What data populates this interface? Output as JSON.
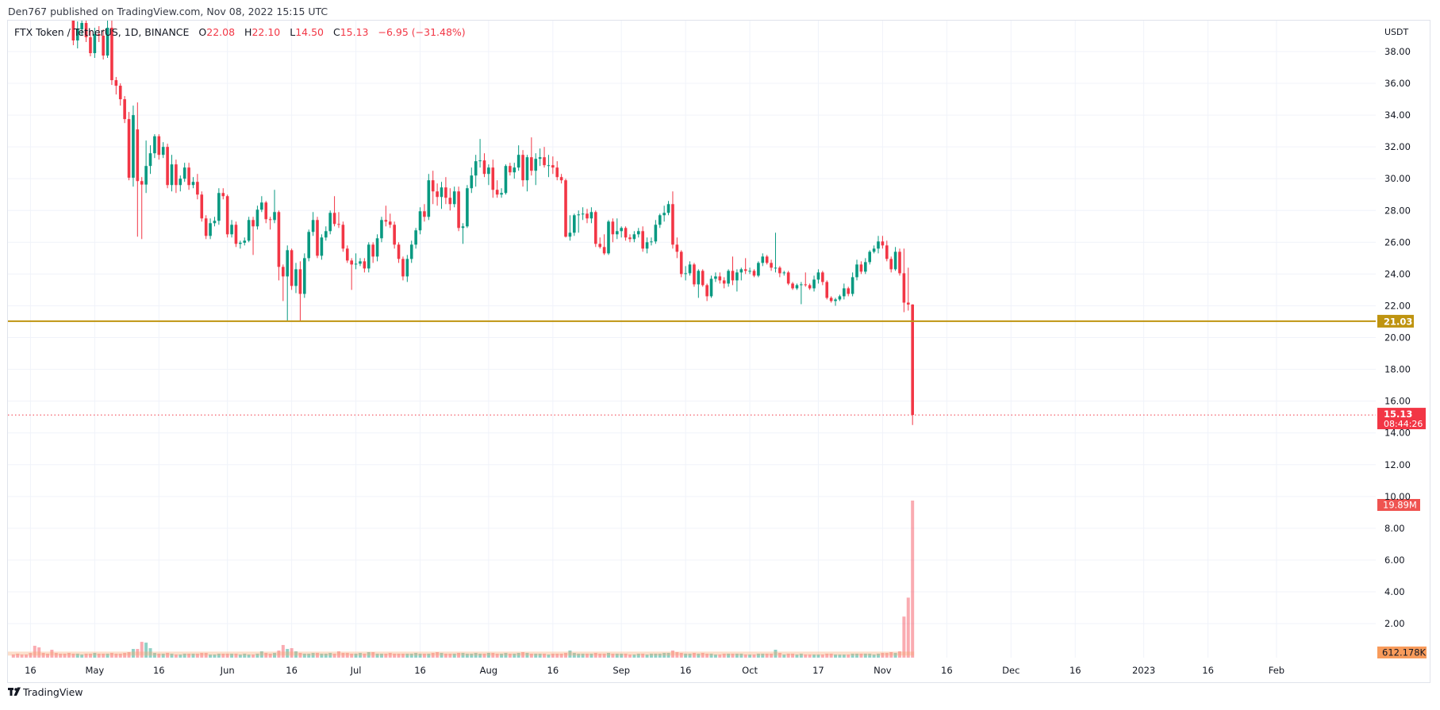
{
  "header": {
    "published": "Den767 published on TradingView.com, Nov 08, 2022 15:15 UTC"
  },
  "legend": {
    "symbol": "FTX Token / TetherUS, 1D, BINANCE",
    "o_label": "O",
    "o": "22.08",
    "h_label": "H",
    "h": "22.10",
    "l_label": "L",
    "l": "14.50",
    "c_label": "C",
    "c": "15.13",
    "change": "−6.95 (−31.48%)"
  },
  "footer": {
    "brand": "TradingView"
  },
  "colors": {
    "up": "#089981",
    "down": "#f23645",
    "level": "#bf9410",
    "volume_ma": "#f7a26b",
    "grid": "#f0f3fa"
  },
  "chart_data": {
    "type": "candlestick",
    "interval": "1D",
    "currency": "USDT",
    "y_ticks": [
      "38.00",
      "36.00",
      "34.00",
      "32.00",
      "30.00",
      "28.00",
      "26.00",
      "24.00",
      "22.00",
      "20.00",
      "18.00",
      "16.00",
      "14.00",
      "12.00",
      "10.00",
      "8.00",
      "6.00",
      "4.00",
      "2.00"
    ],
    "ylim": [
      2,
      38
    ],
    "x_ticks": [
      "16",
      "May",
      "16",
      "Jun",
      "16",
      "Jul",
      "16",
      "Aug",
      "16",
      "Sep",
      "16",
      "Oct",
      "17",
      "Nov",
      "16",
      "Dec",
      "16",
      "2023",
      "16",
      "Feb"
    ],
    "grid": true,
    "horizontal_level": {
      "value": 21.03,
      "label": "21.03"
    },
    "last_price": {
      "value": 15.13,
      "label": "15.13",
      "countdown": "08:44:26"
    },
    "volume_last_label": "19.89M",
    "volume_ma_label": "612.178K",
    "volume_ma": 0.612,
    "volume_unit": "M",
    "candles_ohlc": [
      [
        40.3,
        41.0,
        38.4,
        38.7
      ],
      [
        38.7,
        39.9,
        38.2,
        39.4
      ],
      [
        39.4,
        40.5,
        39.0,
        39.8
      ],
      [
        39.8,
        40.4,
        38.6,
        38.9
      ],
      [
        38.9,
        39.3,
        37.7,
        37.9
      ],
      [
        37.9,
        39.5,
        37.6,
        39.1
      ],
      [
        39.1,
        39.6,
        38.6,
        39.0
      ],
      [
        39.0,
        39.4,
        37.5,
        37.75
      ],
      [
        37.75,
        40.5,
        37.6,
        39.5
      ],
      [
        39.5,
        40.2,
        35.9,
        36.2
      ],
      [
        36.2,
        36.4,
        35.3,
        35.85
      ],
      [
        35.85,
        36.0,
        34.6,
        35.0
      ],
      [
        35.0,
        35.2,
        33.5,
        33.75
      ],
      [
        33.75,
        34.2,
        29.9,
        30.06
      ],
      [
        30.06,
        34.6,
        29.5,
        34.0
      ],
      [
        33.1,
        34.8,
        26.35,
        29.85
      ],
      [
        29.85,
        30.1,
        26.2,
        29.63
      ],
      [
        29.63,
        32.4,
        29.1,
        30.8
      ],
      [
        30.8,
        32.1,
        30.3,
        31.6
      ],
      [
        31.6,
        32.8,
        31.3,
        32.67
      ],
      [
        32.67,
        32.8,
        31.2,
        31.5
      ],
      [
        31.5,
        32.3,
        31.3,
        32.0
      ],
      [
        32.0,
        32.2,
        29.4,
        29.6
      ],
      [
        29.6,
        31.5,
        29.2,
        30.9
      ],
      [
        30.9,
        31.2,
        29.1,
        29.6
      ],
      [
        29.6,
        30.2,
        29.2,
        30.0
      ],
      [
        30.0,
        31.0,
        29.8,
        30.7
      ],
      [
        30.7,
        31.0,
        29.3,
        29.6
      ],
      [
        29.6,
        30.1,
        29.4,
        29.8
      ],
      [
        29.8,
        30.3,
        28.7,
        29.0
      ],
      [
        29.0,
        29.2,
        27.3,
        27.5
      ],
      [
        27.5,
        27.7,
        26.2,
        26.4
      ],
      [
        26.4,
        27.5,
        26.2,
        27.2
      ],
      [
        27.2,
        27.6,
        27.0,
        27.35
      ],
      [
        27.35,
        29.4,
        27.1,
        29.1
      ],
      [
        29.1,
        29.4,
        28.7,
        28.9
      ],
      [
        28.9,
        29.0,
        26.3,
        26.5
      ],
      [
        26.5,
        27.4,
        26.3,
        27.1
      ],
      [
        27.1,
        27.3,
        25.7,
        25.9
      ],
      [
        25.9,
        26.1,
        25.6,
        25.97
      ],
      [
        25.97,
        26.3,
        25.8,
        26.1
      ],
      [
        26.1,
        27.6,
        26.0,
        27.4
      ],
      [
        27.4,
        27.6,
        25.2,
        27.0
      ],
      [
        27.0,
        28.3,
        26.8,
        28.05
      ],
      [
        28.05,
        28.9,
        27.9,
        28.5
      ],
      [
        28.5,
        28.6,
        27.2,
        27.45
      ],
      [
        27.45,
        27.6,
        26.8,
        27.4
      ],
      [
        27.4,
        29.3,
        27.2,
        27.9
      ],
      [
        27.9,
        28.0,
        23.6,
        24.45
      ],
      [
        24.45,
        24.6,
        22.3,
        23.85
      ],
      [
        23.85,
        25.8,
        21.05,
        25.5
      ],
      [
        25.5,
        25.6,
        23.0,
        23.25
      ],
      [
        23.25,
        24.7,
        22.8,
        24.3
      ],
      [
        24.3,
        24.8,
        21.0,
        22.75
      ],
      [
        22.75,
        25.3,
        22.5,
        25.0
      ],
      [
        25.0,
        26.8,
        24.8,
        26.65
      ],
      [
        26.65,
        27.9,
        26.4,
        27.4
      ],
      [
        27.4,
        27.6,
        25.0,
        25.15
      ],
      [
        25.15,
        26.5,
        24.9,
        26.3
      ],
      [
        26.3,
        27.0,
        26.1,
        26.7
      ],
      [
        26.7,
        28.0,
        26.5,
        27.85
      ],
      [
        27.85,
        28.9,
        27.0,
        27.15
      ],
      [
        27.15,
        27.9,
        26.9,
        27.1
      ],
      [
        27.1,
        27.3,
        25.4,
        25.6
      ],
      [
        25.6,
        25.8,
        24.7,
        24.85
      ],
      [
        24.85,
        25.0,
        23.0,
        24.6
      ],
      [
        24.6,
        25.3,
        24.3,
        24.65
      ],
      [
        24.65,
        25.0,
        24.5,
        24.8
      ],
      [
        24.8,
        25.0,
        24.1,
        24.35
      ],
      [
        24.35,
        26.0,
        24.1,
        25.85
      ],
      [
        25.85,
        26.0,
        24.7,
        25.1
      ],
      [
        25.1,
        26.5,
        24.8,
        26.25
      ],
      [
        26.25,
        27.6,
        26.0,
        27.4
      ],
      [
        27.4,
        28.3,
        27.0,
        27.3
      ],
      [
        27.3,
        27.8,
        26.9,
        27.1
      ],
      [
        27.1,
        27.3,
        25.6,
        25.85
      ],
      [
        25.85,
        26.0,
        24.7,
        24.95
      ],
      [
        24.95,
        25.1,
        23.6,
        23.85
      ],
      [
        23.85,
        25.2,
        23.5,
        24.95
      ],
      [
        24.95,
        26.1,
        24.7,
        25.85
      ],
      [
        25.85,
        26.9,
        25.6,
        26.75
      ],
      [
        26.75,
        28.2,
        26.5,
        27.95
      ],
      [
        27.95,
        28.4,
        27.3,
        27.6
      ],
      [
        27.6,
        30.3,
        27.4,
        29.9
      ],
      [
        29.9,
        30.5,
        28.4,
        29.2
      ],
      [
        29.2,
        29.7,
        28.3,
        28.85
      ],
      [
        28.85,
        29.8,
        28.1,
        29.45
      ],
      [
        29.45,
        30.1,
        28.4,
        28.8
      ],
      [
        28.8,
        29.4,
        28.0,
        28.4
      ],
      [
        28.4,
        29.5,
        28.2,
        29.2
      ],
      [
        29.2,
        29.5,
        26.7,
        26.9
      ],
      [
        26.9,
        27.2,
        25.9,
        27.0
      ],
      [
        27.0,
        29.6,
        26.9,
        29.4
      ],
      [
        29.4,
        30.7,
        29.1,
        30.2
      ],
      [
        30.2,
        31.5,
        29.5,
        31.1
      ],
      [
        31.1,
        32.5,
        30.7,
        31.15
      ],
      [
        31.15,
        31.6,
        30.1,
        30.3
      ],
      [
        30.3,
        30.9,
        29.6,
        30.7
      ],
      [
        30.7,
        31.2,
        28.8,
        29.3
      ],
      [
        29.3,
        29.9,
        28.8,
        29.0
      ],
      [
        29.0,
        29.4,
        28.8,
        29.1
      ],
      [
        29.1,
        30.9,
        29.0,
        30.8
      ],
      [
        30.8,
        31.0,
        30.2,
        30.4
      ],
      [
        30.4,
        31.0,
        30.0,
        30.7
      ],
      [
        30.7,
        32.1,
        30.5,
        31.5
      ],
      [
        31.5,
        31.8,
        29.5,
        29.9
      ],
      [
        29.9,
        31.5,
        29.2,
        31.35
      ],
      [
        31.35,
        32.6,
        30.2,
        30.5
      ],
      [
        30.5,
        31.6,
        29.6,
        31.25
      ],
      [
        31.25,
        31.9,
        30.8,
        31.35
      ],
      [
        31.35,
        32.0,
        30.7,
        30.85
      ],
      [
        30.85,
        31.5,
        30.1,
        30.85
      ],
      [
        30.85,
        31.4,
        30.3,
        30.7
      ],
      [
        30.7,
        31.1,
        29.9,
        30.1
      ],
      [
        30.1,
        30.3,
        29.7,
        29.9
      ],
      [
        29.9,
        30.0,
        26.3,
        26.35
      ],
      [
        26.35,
        27.7,
        26.1,
        26.6
      ],
      [
        26.6,
        27.8,
        26.4,
        27.7
      ],
      [
        27.7,
        28.0,
        26.6,
        27.75
      ],
      [
        27.75,
        28.2,
        27.4,
        27.8
      ],
      [
        27.8,
        28.1,
        27.2,
        27.5
      ],
      [
        27.5,
        28.2,
        27.2,
        27.9
      ],
      [
        27.9,
        28.0,
        25.7,
        25.9
      ],
      [
        25.9,
        26.3,
        25.6,
        25.7
      ],
      [
        25.7,
        26.5,
        25.2,
        25.3
      ],
      [
        25.3,
        27.4,
        25.2,
        27.3
      ],
      [
        27.3,
        27.5,
        26.0,
        26.5
      ],
      [
        26.5,
        27.5,
        26.2,
        26.7
      ],
      [
        26.7,
        27.0,
        26.3,
        26.9
      ],
      [
        26.9,
        27.0,
        26.1,
        26.3
      ],
      [
        26.3,
        26.5,
        26.0,
        26.2
      ],
      [
        26.2,
        26.7,
        26.0,
        26.5
      ],
      [
        26.5,
        26.9,
        26.3,
        26.7
      ],
      [
        26.7,
        27.0,
        25.4,
        25.6
      ],
      [
        25.6,
        26.3,
        25.3,
        26.0
      ],
      [
        26.0,
        26.3,
        25.8,
        26.05
      ],
      [
        26.05,
        27.4,
        25.9,
        27.1
      ],
      [
        27.1,
        27.8,
        26.9,
        27.7
      ],
      [
        27.7,
        28.3,
        27.3,
        27.85
      ],
      [
        27.85,
        28.6,
        27.7,
        28.4
      ],
      [
        28.4,
        29.2,
        25.6,
        25.85
      ],
      [
        25.85,
        26.3,
        25.0,
        25.4
      ],
      [
        25.4,
        25.5,
        23.8,
        24.0
      ],
      [
        24.0,
        24.5,
        23.6,
        24.05
      ],
      [
        24.05,
        24.8,
        23.9,
        24.6
      ],
      [
        24.6,
        24.7,
        23.2,
        23.35
      ],
      [
        23.35,
        24.3,
        22.5,
        24.2
      ],
      [
        24.2,
        24.3,
        23.2,
        23.3
      ],
      [
        23.3,
        23.4,
        22.3,
        22.6
      ],
      [
        22.6,
        23.9,
        22.5,
        23.7
      ],
      [
        23.7,
        24.1,
        23.5,
        23.85
      ],
      [
        23.85,
        24.1,
        23.4,
        23.6
      ],
      [
        23.6,
        23.8,
        23.1,
        23.4
      ],
      [
        23.4,
        24.3,
        23.2,
        24.2
      ],
      [
        24.2,
        25.1,
        23.3,
        23.6
      ],
      [
        23.6,
        24.3,
        22.9,
        24.1
      ],
      [
        24.1,
        24.4,
        23.6,
        24.3
      ],
      [
        24.3,
        25.0,
        24.0,
        24.2
      ],
      [
        24.2,
        24.4,
        24.0,
        24.2
      ],
      [
        24.2,
        24.3,
        23.8,
        23.9
      ],
      [
        23.9,
        24.8,
        23.8,
        24.7
      ],
      [
        24.7,
        25.3,
        24.5,
        25.1
      ],
      [
        25.1,
        25.2,
        24.6,
        24.7
      ],
      [
        24.7,
        24.9,
        24.2,
        24.4
      ],
      [
        24.4,
        26.6,
        24.1,
        24.4
      ],
      [
        24.4,
        24.5,
        23.8,
        24.05
      ],
      [
        24.05,
        24.2,
        23.9,
        24.1
      ],
      [
        24.1,
        24.2,
        23.3,
        23.4
      ],
      [
        23.4,
        23.5,
        23.0,
        23.1
      ],
      [
        23.1,
        23.4,
        23.0,
        23.3
      ],
      [
        23.3,
        23.5,
        22.1,
        23.35
      ],
      [
        23.35,
        24.1,
        23.2,
        23.3
      ],
      [
        23.3,
        23.4,
        23.0,
        23.1
      ],
      [
        23.1,
        23.9,
        22.9,
        23.65
      ],
      [
        23.65,
        24.3,
        23.4,
        24.1
      ],
      [
        24.1,
        24.2,
        23.3,
        23.5
      ],
      [
        23.5,
        23.6,
        22.4,
        22.5
      ],
      [
        22.5,
        22.6,
        22.2,
        22.3
      ],
      [
        22.3,
        22.5,
        22.0,
        22.4
      ],
      [
        22.4,
        22.7,
        22.3,
        22.6
      ],
      [
        22.6,
        23.4,
        22.4,
        23.1
      ],
      [
        23.1,
        23.2,
        22.6,
        22.75
      ],
      [
        22.75,
        24.1,
        22.6,
        23.8
      ],
      [
        23.8,
        24.9,
        23.6,
        24.6
      ],
      [
        24.6,
        24.8,
        24.0,
        24.15
      ],
      [
        24.15,
        25.0,
        24.0,
        24.75
      ],
      [
        24.75,
        25.5,
        24.6,
        25.4
      ],
      [
        25.4,
        25.8,
        25.3,
        25.6
      ],
      [
        25.6,
        26.4,
        25.3,
        26.05
      ],
      [
        26.05,
        26.4,
        25.6,
        25.8
      ],
      [
        25.8,
        26.1,
        24.8,
        24.95
      ],
      [
        24.95,
        25.1,
        24.1,
        24.3
      ],
      [
        24.3,
        25.7,
        24.2,
        25.4
      ],
      [
        25.4,
        25.6,
        23.9,
        24.05
      ],
      [
        24.05,
        25.6,
        21.6,
        22.2
      ],
      [
        22.2,
        24.4,
        21.7,
        22.08
      ],
      [
        22.08,
        22.1,
        14.5,
        15.13
      ]
    ],
    "volume": [
      0.4,
      0.5,
      0.4,
      0.4,
      0.6,
      1.5,
      1.3,
      0.6,
      0.5,
      1.0,
      0.6,
      0.5,
      0.5,
      0.6,
      0.5,
      0.5,
      0.4,
      0.5,
      0.5,
      0.6,
      0.5,
      0.5,
      0.5,
      0.6,
      0.5,
      0.5,
      0.6,
      0.7,
      1.1,
      1.1,
      2.0,
      1.9,
      1.2,
      0.6,
      0.5,
      0.5,
      0.6,
      0.5,
      0.4,
      0.4,
      0.5,
      0.5,
      0.5,
      0.5,
      0.6,
      0.6,
      0.4,
      0.4,
      0.5,
      0.5,
      0.5,
      0.5,
      0.5,
      0.4,
      0.5,
      0.4,
      0.4,
      0.5,
      0.8,
      0.6,
      0.5,
      0.6,
      0.9,
      1.6,
      1.1,
      1.2,
      0.8,
      0.6,
      0.5,
      0.5,
      0.6,
      0.6,
      0.5,
      0.5,
      0.6,
      0.5,
      0.8,
      0.6,
      0.6,
      0.5,
      0.5,
      0.6,
      0.5,
      0.7,
      0.7,
      0.5,
      0.5,
      0.5,
      0.6,
      0.5,
      0.5,
      0.5,
      0.5,
      0.5,
      0.6,
      0.5,
      0.5,
      0.5,
      0.6,
      0.7,
      0.6,
      0.5,
      0.5,
      0.5,
      0.6,
      0.6,
      0.5,
      0.5,
      0.6,
      0.5,
      0.5,
      0.6,
      0.6,
      0.5,
      0.5,
      0.6,
      0.5,
      0.5,
      0.6,
      0.7,
      0.6,
      0.5,
      0.5,
      0.5,
      0.5,
      0.4,
      0.5,
      0.5,
      0.5,
      0.6,
      0.9,
      0.6,
      0.5,
      0.5,
      0.5,
      0.5,
      0.6,
      0.5,
      0.5,
      0.6,
      0.5,
      0.5,
      0.5,
      0.5,
      0.4,
      0.4,
      0.5,
      0.5,
      0.4,
      0.5,
      0.5,
      0.5,
      0.6,
      0.6,
      0.9,
      0.7,
      0.6,
      0.5,
      0.5,
      0.6,
      0.5,
      0.6,
      0.5,
      0.5,
      0.4,
      0.4,
      0.5,
      0.5,
      0.5,
      0.5,
      0.5,
      0.4,
      0.4,
      0.4,
      0.5,
      0.5,
      0.5,
      0.5,
      1.0,
      0.6,
      0.4,
      0.5,
      0.5,
      0.4,
      0.5,
      0.4,
      0.4,
      0.4,
      0.4,
      0.4,
      0.5,
      0.5,
      0.4,
      0.4,
      0.4,
      0.4,
      0.5,
      0.5,
      0.5,
      0.5,
      0.5,
      0.4,
      0.5,
      0.6,
      0.6,
      0.7,
      0.6,
      0.8,
      5.2,
      7.6,
      19.89
    ]
  }
}
